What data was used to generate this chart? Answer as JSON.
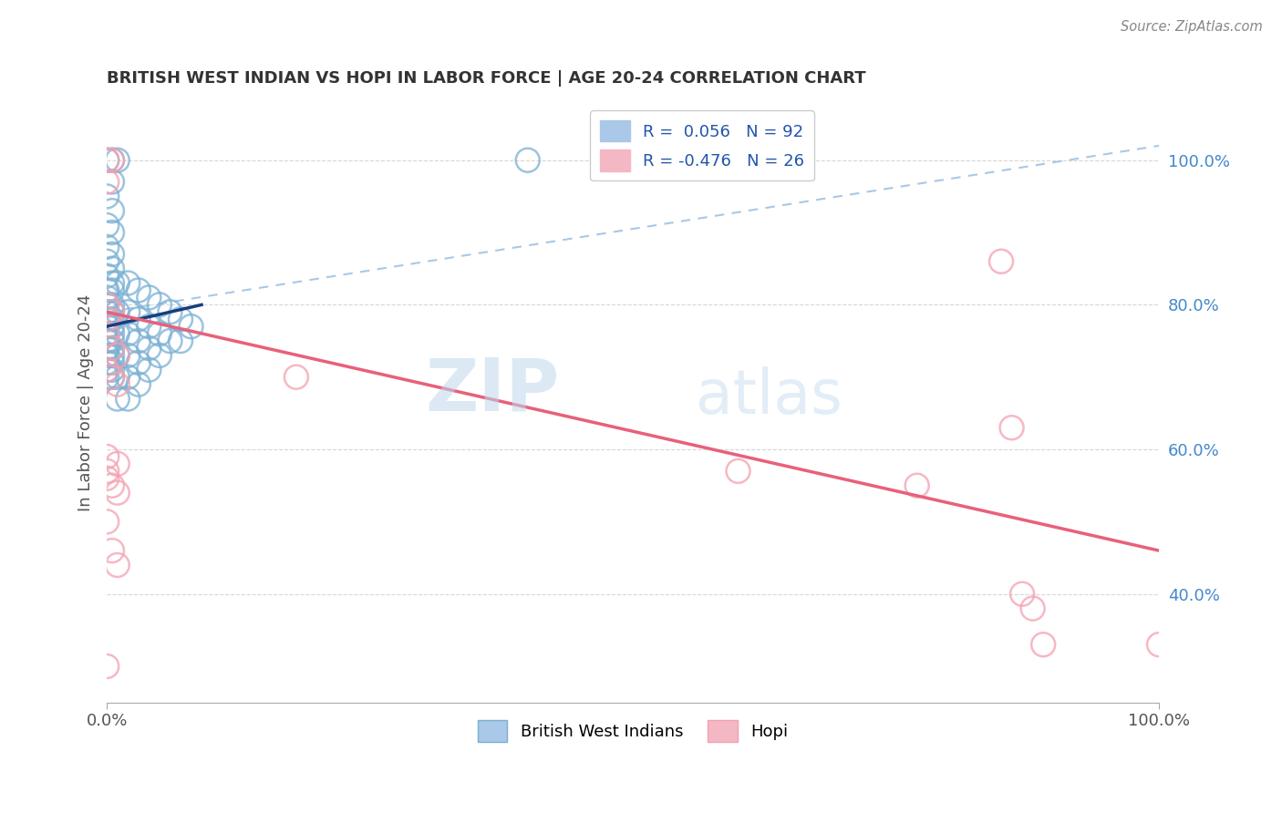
{
  "title": "BRITISH WEST INDIAN VS HOPI IN LABOR FORCE | AGE 20-24 CORRELATION CHART",
  "source_text": "Source: ZipAtlas.com",
  "ylabel": "In Labor Force | Age 20-24",
  "xlim": [
    0.0,
    1.0
  ],
  "ylim": [
    0.25,
    1.08
  ],
  "xtick_positions": [
    0.0,
    1.0
  ],
  "xticklabels": [
    "0.0%",
    "100.0%"
  ],
  "ytick_positions": [
    0.4,
    0.6,
    0.8,
    1.0
  ],
  "yticklabels": [
    "40.0%",
    "60.0%",
    "80.0%",
    "100.0%"
  ],
  "grid_color": "#cccccc",
  "bg_color": "#ffffff",
  "watermark_zip": "ZIP",
  "watermark_atlas": "atlas",
  "legend_R_blue": "0.056",
  "legend_N_blue": "92",
  "legend_R_pink": "-0.476",
  "legend_N_pink": "26",
  "blue_scatter": [
    [
      0.0,
      1.0
    ],
    [
      0.005,
      1.0
    ],
    [
      0.01,
      1.0
    ],
    [
      0.005,
      0.97
    ],
    [
      0.0,
      0.95
    ],
    [
      0.005,
      0.93
    ],
    [
      0.0,
      0.91
    ],
    [
      0.005,
      0.9
    ],
    [
      0.0,
      0.88
    ],
    [
      0.005,
      0.87
    ],
    [
      0.0,
      0.86
    ],
    [
      0.005,
      0.85
    ],
    [
      0.0,
      0.84
    ],
    [
      0.005,
      0.83
    ],
    [
      0.0,
      0.82
    ],
    [
      0.005,
      0.82
    ],
    [
      0.0,
      0.81
    ],
    [
      0.005,
      0.8
    ],
    [
      0.0,
      0.8
    ],
    [
      0.005,
      0.79
    ],
    [
      0.0,
      0.79
    ],
    [
      0.005,
      0.78
    ],
    [
      0.0,
      0.78
    ],
    [
      0.005,
      0.77
    ],
    [
      0.0,
      0.77
    ],
    [
      0.005,
      0.76
    ],
    [
      0.0,
      0.76
    ],
    [
      0.005,
      0.75
    ],
    [
      0.0,
      0.75
    ],
    [
      0.005,
      0.74
    ],
    [
      0.0,
      0.74
    ],
    [
      0.005,
      0.73
    ],
    [
      0.0,
      0.73
    ],
    [
      0.005,
      0.72
    ],
    [
      0.0,
      0.72
    ],
    [
      0.005,
      0.71
    ],
    [
      0.0,
      0.71
    ],
    [
      0.005,
      0.7
    ],
    [
      0.0,
      0.7
    ],
    [
      0.01,
      0.83
    ],
    [
      0.01,
      0.79
    ],
    [
      0.01,
      0.76
    ],
    [
      0.01,
      0.73
    ],
    [
      0.01,
      0.7
    ],
    [
      0.01,
      0.67
    ],
    [
      0.02,
      0.83
    ],
    [
      0.02,
      0.79
    ],
    [
      0.02,
      0.76
    ],
    [
      0.02,
      0.73
    ],
    [
      0.02,
      0.7
    ],
    [
      0.02,
      0.67
    ],
    [
      0.03,
      0.82
    ],
    [
      0.03,
      0.78
    ],
    [
      0.03,
      0.75
    ],
    [
      0.03,
      0.72
    ],
    [
      0.03,
      0.69
    ],
    [
      0.04,
      0.81
    ],
    [
      0.04,
      0.77
    ],
    [
      0.04,
      0.74
    ],
    [
      0.04,
      0.71
    ],
    [
      0.05,
      0.8
    ],
    [
      0.05,
      0.76
    ],
    [
      0.05,
      0.73
    ],
    [
      0.06,
      0.79
    ],
    [
      0.06,
      0.75
    ],
    [
      0.07,
      0.78
    ],
    [
      0.07,
      0.75
    ],
    [
      0.08,
      0.77
    ],
    [
      0.4,
      1.0
    ]
  ],
  "pink_scatter": [
    [
      0.0,
      1.0
    ],
    [
      0.005,
      1.0
    ],
    [
      0.0,
      0.97
    ],
    [
      0.0,
      0.8
    ],
    [
      0.005,
      0.79
    ],
    [
      0.0,
      0.78
    ],
    [
      0.0,
      0.76
    ],
    [
      0.005,
      0.74
    ],
    [
      0.01,
      0.73
    ],
    [
      0.0,
      0.71
    ],
    [
      0.005,
      0.7
    ],
    [
      0.01,
      0.69
    ],
    [
      0.0,
      0.59
    ],
    [
      0.01,
      0.58
    ],
    [
      0.0,
      0.57
    ],
    [
      0.0,
      0.56
    ],
    [
      0.005,
      0.55
    ],
    [
      0.01,
      0.54
    ],
    [
      0.0,
      0.5
    ],
    [
      0.005,
      0.46
    ],
    [
      0.01,
      0.44
    ],
    [
      0.0,
      0.3
    ],
    [
      0.18,
      0.7
    ],
    [
      0.6,
      0.57
    ],
    [
      0.77,
      0.55
    ],
    [
      0.85,
      0.86
    ],
    [
      0.86,
      0.63
    ],
    [
      0.87,
      0.4
    ],
    [
      0.88,
      0.38
    ],
    [
      0.89,
      0.33
    ],
    [
      1.0,
      0.33
    ]
  ],
  "blue_line_x": [
    0.0,
    0.09
  ],
  "blue_line_y": [
    0.77,
    0.8
  ],
  "dashed_line_x": [
    0.0,
    1.0
  ],
  "dashed_line_y": [
    0.79,
    1.02
  ],
  "pink_line_x": [
    0.0,
    1.0
  ],
  "pink_line_y": [
    0.79,
    0.46
  ],
  "blue_color": "#7ab0d4",
  "pink_color": "#f4a0b0",
  "blue_line_color": "#1a3d7c",
  "pink_line_color": "#e8607a",
  "dashed_line_color": "#a8c8e8"
}
